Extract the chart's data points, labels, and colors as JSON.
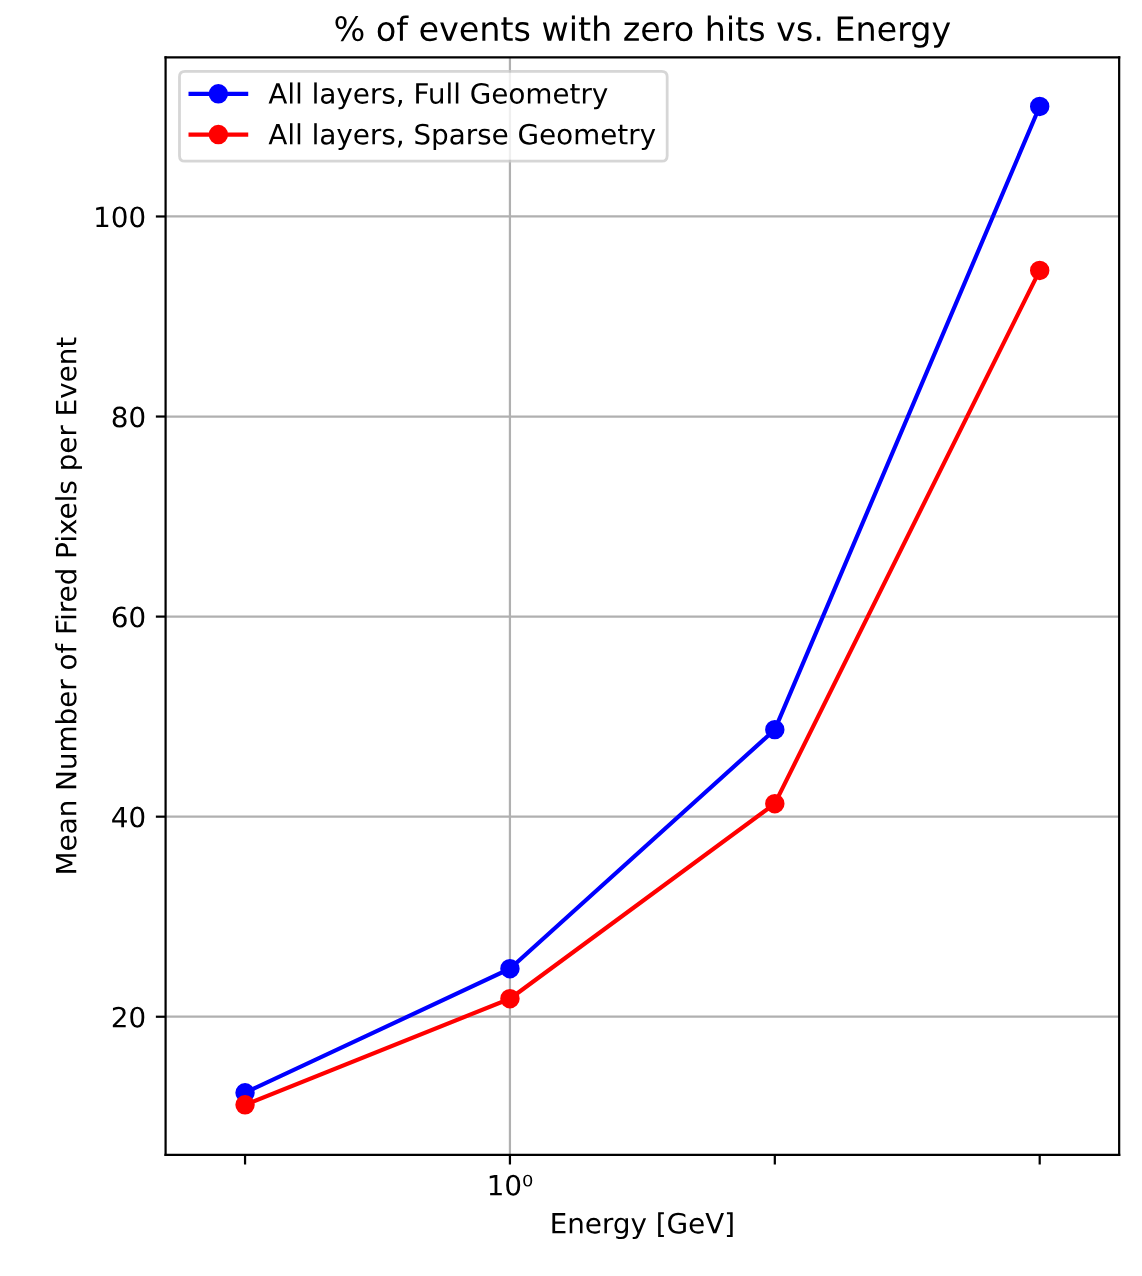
{
  "chart_data": {
    "type": "line",
    "title": "% of events with zero hits vs. Energy",
    "xlabel": "Energy [GeV]",
    "ylabel": "Mean Number of Fired Pixels per Event",
    "categories": [
      null,
      "10⁰",
      null,
      null
    ],
    "series": [
      {
        "name": "All layers, Full Geometry",
        "color": "#0000ff",
        "values": [
          12.4,
          24.8,
          48.7,
          111
        ]
      },
      {
        "name": "All layers, Sparse Geometry",
        "color": "#ff0000",
        "values": [
          11.2,
          21.8,
          41.3,
          94.6
        ]
      }
    ],
    "ylim": [
      6.2,
      115.9
    ],
    "yticks": [
      20,
      40,
      60,
      80,
      100
    ],
    "grid": true,
    "legend": "top left",
    "marker": "circle",
    "line_style": "solid"
  }
}
